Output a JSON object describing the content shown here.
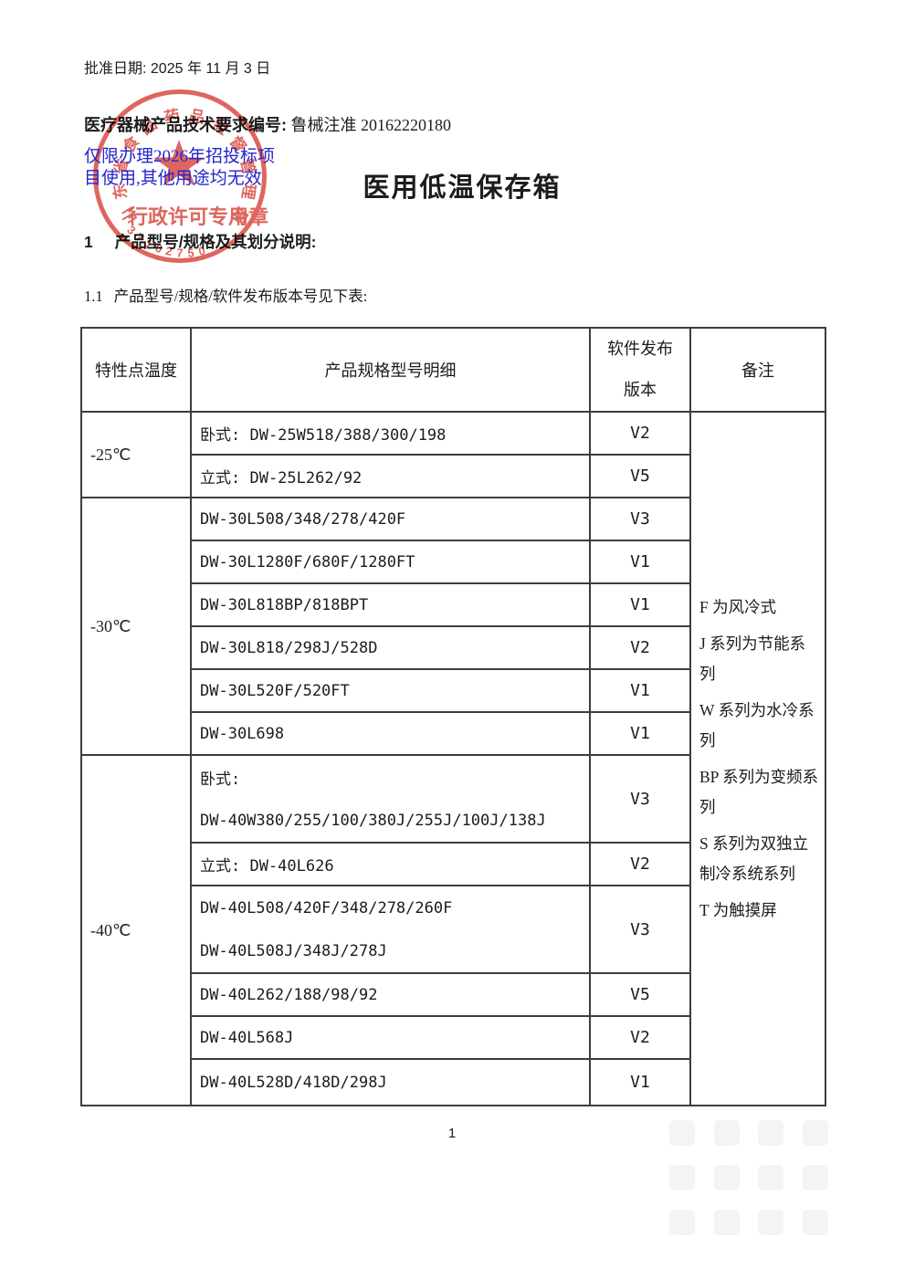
{
  "header": {
    "approval_label": "批准日期:",
    "approval_date": "2025 年 11 月 3 日",
    "doc_number_label": "医疗器械产品技术要求编号:",
    "doc_number_value": "鲁械注准 20162220180",
    "restriction_line1": "仅限办理2026年招投标项",
    "restriction_line2": "目使用,其他用途均无效",
    "title": "医用低温保存箱"
  },
  "sections": {
    "s1_num": "1",
    "s1_text": "产品型号/规格及其划分说明:",
    "s11_num": "1.1",
    "s11_text": "产品型号/规格/软件发布版本号见下表:"
  },
  "stamp": {
    "arc_text": "山东省食品药品监督管理局",
    "center_label": "行政许可专用章",
    "serial": "37102750",
    "color": "#d6453a"
  },
  "table": {
    "headers": [
      "特性点温度",
      "产品规格型号明细",
      "软件发布\n版本",
      "备注"
    ],
    "groups": [
      {
        "temp": "-25℃",
        "rows": [
          {
            "model": "卧式: DW-25W518/388/300/198",
            "version": "V2"
          },
          {
            "model": "立式: DW-25L262/92",
            "version": "V5"
          }
        ]
      },
      {
        "temp": "-30℃",
        "rows": [
          {
            "model": "DW-30L508/348/278/420F",
            "version": "V3"
          },
          {
            "model": "DW-30L1280F/680F/1280FT",
            "version": "V1"
          },
          {
            "model": "DW-30L818BP/818BPT",
            "version": "V1"
          },
          {
            "model": "DW-30L818/298J/528D",
            "version": "V2"
          },
          {
            "model": "DW-30L520F/520FT",
            "version": "V1"
          },
          {
            "model": "DW-30L698",
            "version": "V1"
          }
        ]
      },
      {
        "temp": "-40℃",
        "rows": [
          {
            "model": "卧式:\nDW-40W380/255/100/380J/255J/100J/138J",
            "version": "V3"
          },
          {
            "model": "立式: DW-40L626",
            "version": "V2"
          },
          {
            "model": "DW-40L508/420F/348/278/260F\nDW-40L508J/348J/278J",
            "version": "V3"
          },
          {
            "model": "DW-40L262/188/98/92",
            "version": "V5"
          },
          {
            "model": "DW-40L568J",
            "version": "V2"
          },
          {
            "model": "DW-40L528D/418D/298J",
            "version": "V1"
          }
        ]
      }
    ],
    "remarks": [
      "F 为风冷式",
      "J 系列为节能系列",
      "W 系列为水冷系列",
      "BP 系列为变频系列",
      "S 系列为双独立制冷系统系列",
      "T 为触摸屏"
    ]
  },
  "footer": {
    "page_number": "1"
  }
}
